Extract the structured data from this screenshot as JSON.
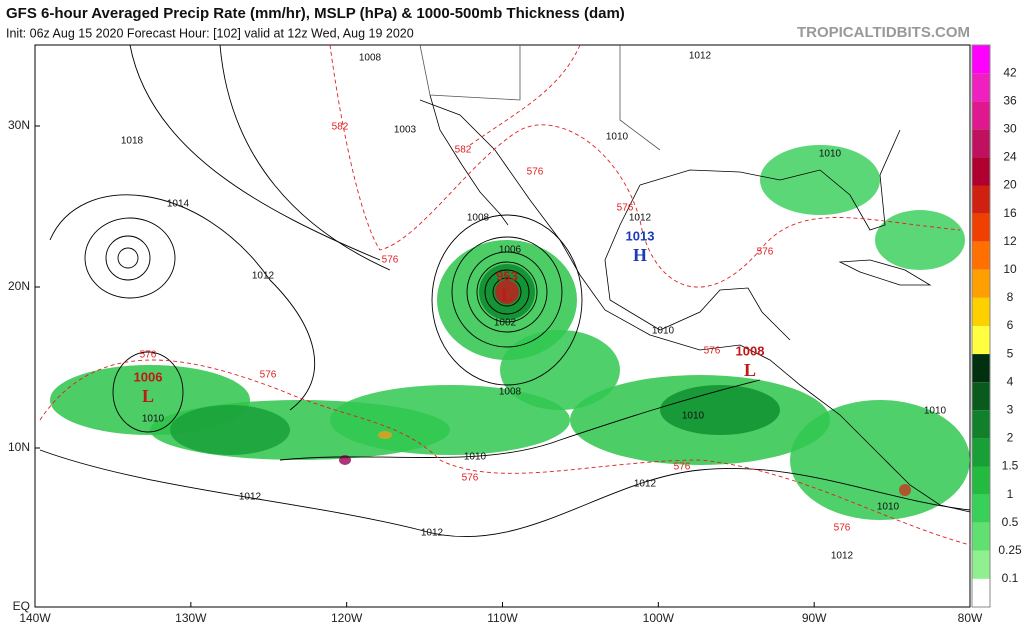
{
  "header": {
    "title": "GFS 6-hour Averaged Precip Rate (mm/hr), MSLP (hPa) & 1000-500mb Thickness (dam)",
    "subtitle": "Init: 06z Aug 15 2020   Forecast Hour: [102]   valid at 12z Wed, Aug 19 2020",
    "site": "TROPICALTIDBITS.COM"
  },
  "axes": {
    "lat_labels": [
      "30N",
      "20N",
      "10N",
      "EQ"
    ],
    "lon_labels": [
      "140W",
      "130W",
      "120W",
      "110W",
      "100W",
      "90W",
      "80W"
    ]
  },
  "colorbar": {
    "labels": [
      "42",
      "36",
      "30",
      "24",
      "20",
      "16",
      "12",
      "10",
      "8",
      "6",
      "5",
      "4",
      "3",
      "2",
      "1.5",
      "1",
      "0.5",
      "0.25",
      "0.1"
    ]
  },
  "pressure_centers": [
    {
      "value": "1013",
      "letter": "H"
    },
    {
      "value": "953",
      "letter": "L"
    },
    {
      "value": "1006",
      "letter": "L"
    },
    {
      "value": "1008",
      "letter": "L"
    }
  ],
  "contour_labels": [
    "1008",
    "1018",
    "1014",
    "1012",
    "582",
    "576",
    "1006",
    "1008",
    "1010",
    "1012",
    "1012",
    "576",
    "1012",
    "576",
    "1010",
    "1012",
    "576",
    "1010",
    "1012",
    "1010",
    "576",
    "1010",
    "576",
    "1010",
    "1010",
    "576",
    "1012",
    "1010",
    "576",
    "576",
    "1003",
    "582",
    "576",
    "1008",
    "1002"
  ]
}
